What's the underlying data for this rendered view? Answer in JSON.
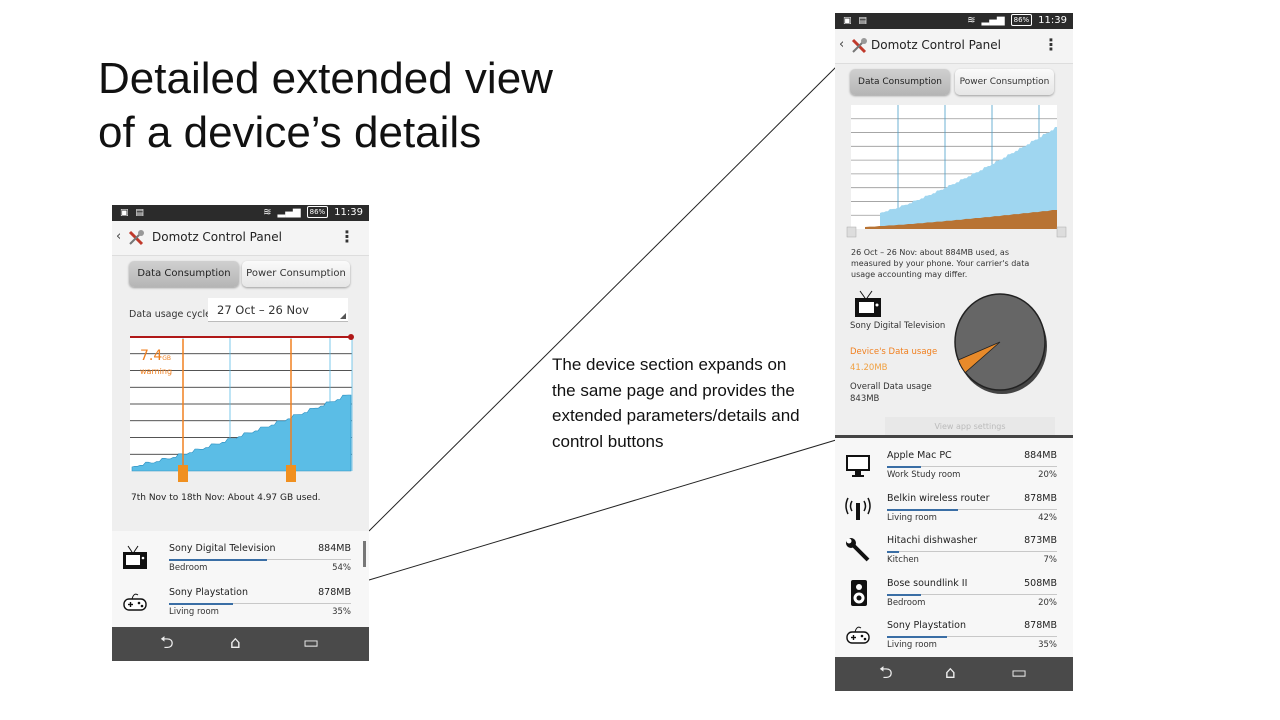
{
  "slide": {
    "title_line1": "Detailed extended view",
    "title_line2": "of a device’s details",
    "annotation": "The device section expands on the same page and provides the extended parameters/details and control buttons"
  },
  "status_bar": {
    "battery": "86%",
    "time": "11:39"
  },
  "app": {
    "title": "Domotz Control Panel"
  },
  "tabs": {
    "data": "Data Consumption",
    "power": "Power Consumption"
  },
  "navbar": {
    "back": "⮌",
    "home": "⌂",
    "recents": "▭"
  },
  "phone_left": {
    "cycle_label": "Data usage cycle",
    "cycle_value": "27 Oct – 26 Nov",
    "warning_value": "7.4",
    "warning_unit": "GB",
    "warning_label": "warning",
    "summary": "7th Nov to 18th Nov: About 4.97 GB used.",
    "devices": [
      {
        "name": "Sony Digital Television",
        "size": "884MB",
        "room": "Bedroom",
        "pct": "54%",
        "fill": 0.54,
        "icon": "tv-icon"
      },
      {
        "name": "Sony Playstation",
        "size": "878MB",
        "room": "Living room",
        "pct": "35%",
        "fill": 0.35,
        "icon": "gamepad-icon"
      }
    ]
  },
  "phone_right": {
    "period_text": "26 Oct – 26 Nov: about 884MB used, as measured by your phone. Your carrier's data usage accounting may differ.",
    "device_name": "Sony Digital Television",
    "device_usage_label": "Device's Data usage",
    "device_usage_value": "41.20MB",
    "overall_label": "Overall Data usage",
    "overall_value": "843MB",
    "device_share_pct": 4.9,
    "view_settings": "View app settings",
    "devices": [
      {
        "name": "Apple Mac PC",
        "size": "884MB",
        "room": "Work Study room",
        "pct": "20%",
        "fill": 0.2,
        "icon": "monitor-icon"
      },
      {
        "name": "Belkin wireless router",
        "size": "878MB",
        "room": "Living room",
        "pct": "42%",
        "fill": 0.42,
        "icon": "router-icon"
      },
      {
        "name": "Hitachi dishwasher",
        "size": "873MB",
        "room": "Kitchen",
        "pct": "7%",
        "fill": 0.07,
        "icon": "wrench-icon"
      },
      {
        "name": "Bose soundlink II",
        "size": "508MB",
        "room": "Bedroom",
        "pct": "20%",
        "fill": 0.2,
        "icon": "speaker-icon"
      },
      {
        "name": "Sony Playstation",
        "size": "878MB",
        "room": "Living room",
        "pct": "35%",
        "fill": 0.35,
        "icon": "gamepad-icon"
      }
    ]
  },
  "colors": {
    "accent_orange": "#f08020",
    "usage_blue": "#5bbde6",
    "limit_red": "#b01818",
    "bar_blue": "#3a6ea5",
    "device_brown": "#b87333"
  }
}
